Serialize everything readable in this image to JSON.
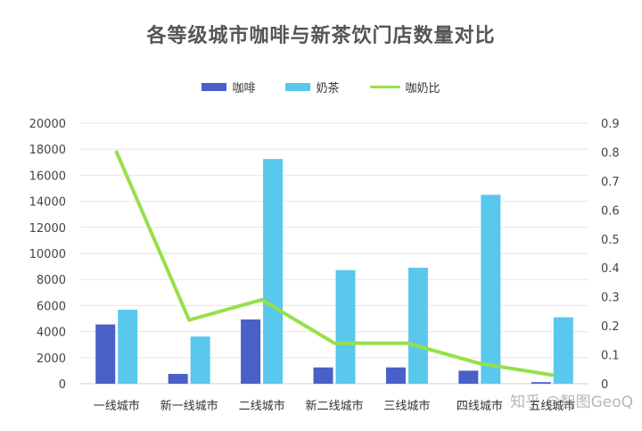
{
  "chart_data": {
    "type": "bar",
    "title": "各等级城市咖啡与新茶饮门店数量对比",
    "categories": [
      "一线城市",
      "新一线城市",
      "二线城市",
      "新二线城市",
      "三线城市",
      "四线城市",
      "五线城市"
    ],
    "series": [
      {
        "name": "咖啡",
        "type": "bar",
        "axis": "left",
        "color": "#4a5fc7",
        "values": [
          4550,
          750,
          4930,
          1250,
          1250,
          1000,
          120
        ]
      },
      {
        "name": "奶茶",
        "type": "bar",
        "axis": "left",
        "color": "#5ac8ec",
        "values": [
          5680,
          3620,
          17250,
          8720,
          8900,
          14500,
          5100
        ]
      },
      {
        "name": "咖奶比",
        "type": "line",
        "axis": "right",
        "color": "#96e04a",
        "values": [
          0.8,
          0.22,
          0.29,
          0.14,
          0.14,
          0.07,
          0.03
        ]
      }
    ],
    "ylim_left": [
      0,
      20000
    ],
    "yticks_left": [
      "0",
      "2000",
      "4000",
      "6000",
      "8000",
      "10000",
      "12000",
      "14000",
      "16000",
      "18000",
      "20000"
    ],
    "ylim_right": [
      0,
      0.9
    ],
    "yticks_right": [
      "0",
      "0.1",
      "0.2",
      "0.3",
      "0.4",
      "0.5",
      "0.6",
      "0.7",
      "0.8",
      "0.9"
    ],
    "grid": true,
    "legend_position": "top-center"
  },
  "watermark": "知乎 @智图GeoQ"
}
